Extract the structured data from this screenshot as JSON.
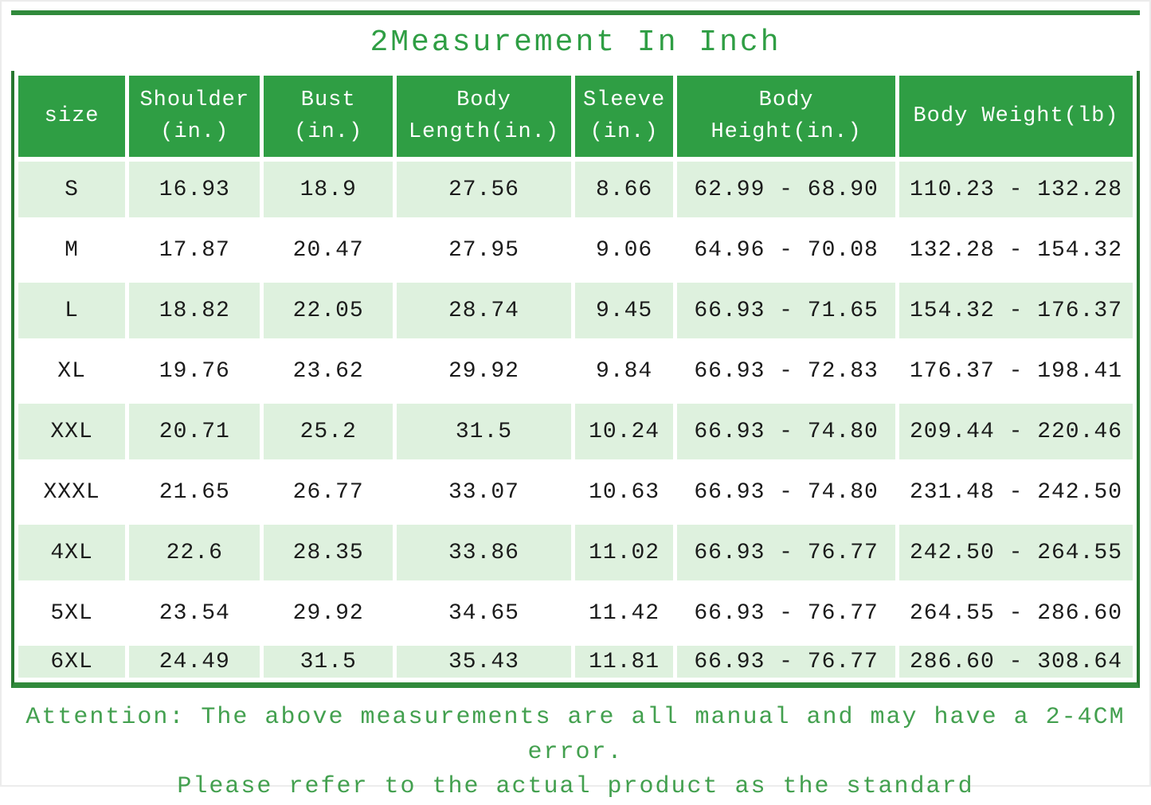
{
  "title": "2Measurement In Inch",
  "table": {
    "headers": [
      "size",
      "Shoulder\n(in.)",
      "Bust\n(in.)",
      "Body\nLength(in.)",
      "Sleeve\n(in.)",
      "Body\nHeight(in.)",
      "Body Weight(lb)"
    ],
    "rows": [
      [
        "S",
        "16.93",
        "18.9",
        "27.56",
        "8.66",
        "62.99 - 68.90",
        "110.23 - 132.28"
      ],
      [
        "M",
        "17.87",
        "20.47",
        "27.95",
        "9.06",
        "64.96 - 70.08",
        "132.28 - 154.32"
      ],
      [
        "L",
        "18.82",
        "22.05",
        "28.74",
        "9.45",
        "66.93 - 71.65",
        "154.32 - 176.37"
      ],
      [
        "XL",
        "19.76",
        "23.62",
        "29.92",
        "9.84",
        "66.93 - 72.83",
        "176.37 - 198.41"
      ],
      [
        "XXL",
        "20.71",
        "25.2",
        "31.5",
        "10.24",
        "66.93 - 74.80",
        "209.44 - 220.46"
      ],
      [
        "XXXL",
        "21.65",
        "26.77",
        "33.07",
        "10.63",
        "66.93 - 74.80",
        "231.48 - 242.50"
      ],
      [
        "4XL",
        "22.6",
        "28.35",
        "33.86",
        "11.02",
        "66.93 - 76.77",
        "242.50 - 264.55"
      ],
      [
        "5XL",
        "23.54",
        "29.92",
        "34.65",
        "11.42",
        "66.93 - 76.77",
        "264.55 - 286.60"
      ],
      [
        "6XL",
        "24.49",
        "31.5",
        "35.43",
        "11.81",
        "66.93 - 76.77",
        "286.60 - 308.64"
      ]
    ]
  },
  "attention": {
    "line1": "Attention: The above measurements are all manual and may have a 2-4CM error.",
    "line2": "Please refer to the actual product as the standard"
  },
  "colors": {
    "header_green": "#2f9e44",
    "frame_green": "#318a3c",
    "side_border_green": "#26772f",
    "tint_row_green": "#def1de",
    "title_green": "#2f9e44",
    "attention_green": "#43a04f",
    "cell_text": "#1b1b1b"
  }
}
